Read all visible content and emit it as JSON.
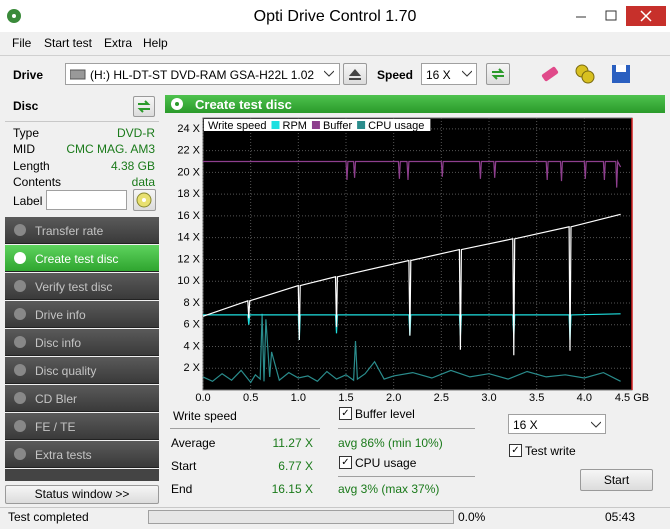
{
  "window": {
    "title": "Opti Drive Control 1.70"
  },
  "menu": [
    "File",
    "Start test",
    "Extra",
    "Help"
  ],
  "toolbar": {
    "drive_label": "Drive",
    "drive": "(H:)  HL-DT-ST DVD-RAM GSA-H22L 1.02",
    "speed_label": "Speed",
    "speed": "16 X"
  },
  "disc": {
    "title": "Disc",
    "fields": [
      [
        "Type",
        "DVD-R"
      ],
      [
        "MID",
        "CMC MAG. AM3"
      ],
      [
        "Length",
        "4.38 GB"
      ],
      [
        "Contents",
        "data"
      ]
    ],
    "label": "Label"
  },
  "nav": [
    "Transfer rate",
    "Create test disc",
    "Verify test disc",
    "Drive info",
    "Disc info",
    "Disc quality",
    "CD Bler",
    "FE / TE",
    "Extra tests"
  ],
  "status_window": "Status window >>",
  "status_bar": {
    "message": "Test completed",
    "progress": "0.0%",
    "time": "05:43"
  },
  "panel": {
    "title": "Create test disc"
  },
  "chart_data": {
    "type": "line",
    "grid": true,
    "xlim": [
      0,
      4.5
    ],
    "ylim": [
      0,
      25
    ],
    "xticks": [
      {
        "value": 0,
        "label": "0.0"
      },
      0.5,
      {
        "value": 1,
        "label": "1.0"
      },
      1.5,
      {
        "value": 2,
        "label": "2.0"
      },
      2.5,
      {
        "value": 3,
        "label": "3.0"
      },
      3.5,
      {
        "value": 4,
        "label": "4.0"
      },
      {
        "value": 4.5,
        "label": "4.5 GB"
      }
    ],
    "yticks": [
      {
        "value": 2,
        "label": "2 X"
      },
      {
        "value": 4,
        "label": "4 X"
      },
      {
        "value": 6,
        "label": "6 X"
      },
      {
        "value": 8,
        "label": "8 X"
      },
      {
        "value": 10,
        "label": "10 X"
      },
      {
        "value": 12,
        "label": "12 X"
      },
      {
        "value": 14,
        "label": "14 X"
      },
      {
        "value": 16,
        "label": "16 X"
      },
      {
        "value": 18,
        "label": "18 X"
      },
      {
        "value": 20,
        "label": "20 X"
      },
      {
        "value": 22,
        "label": "22 X"
      },
      {
        "value": 24,
        "label": "24 X"
      }
    ],
    "series": [
      {
        "name": "Write speed",
        "color": "#ffffff",
        "x": [
          0,
          0.47,
          0.48,
          0.49,
          1.0,
          1.01,
          1.02,
          1.39,
          1.4,
          1.41,
          2.16,
          2.17,
          2.18,
          2.69,
          2.7,
          2.71,
          3.25,
          3.26,
          3.27,
          3.84,
          3.85,
          3.86,
          4.38
        ],
        "values": [
          6.77,
          8.2,
          6.6,
          8.2,
          9.6,
          4.6,
          9.6,
          10.4,
          5.8,
          10.4,
          11.9,
          5.0,
          11.9,
          12.9,
          3.7,
          12.9,
          13.9,
          3.2,
          13.9,
          15.0,
          3.6,
          15.0,
          16.15
        ]
      },
      {
        "name": "RPM",
        "color": "#1ee0e0",
        "x": [
          0,
          0.47,
          0.48,
          0.49,
          1.0,
          1.01,
          1.02,
          1.39,
          1.4,
          1.41,
          2.16,
          2.17,
          2.18,
          2.69,
          2.7,
          2.71,
          3.25,
          3.26,
          3.27,
          3.84,
          3.85,
          3.86,
          4.38
        ],
        "values": [
          6.9,
          6.9,
          6.0,
          6.9,
          6.9,
          4.6,
          6.9,
          6.9,
          5.2,
          6.9,
          6.9,
          5.0,
          6.9,
          6.9,
          5.0,
          6.9,
          6.9,
          4.8,
          6.9,
          6.9,
          4.6,
          6.9,
          7.0
        ]
      },
      {
        "name": "Buffer",
        "color": "#8e3f8e",
        "x": [
          0,
          1.5,
          1.51,
          1.52,
          1.58,
          1.59,
          1.6,
          2.05,
          2.06,
          2.07,
          2.14,
          2.15,
          2.16,
          2.5,
          2.51,
          2.52,
          2.9,
          2.91,
          2.92,
          3.05,
          3.06,
          3.07,
          3.6,
          3.61,
          3.62,
          3.75,
          3.76,
          3.77,
          4.0,
          4.01,
          4.02,
          4.2,
          4.21,
          4.22,
          4.33,
          4.34,
          4.35,
          4.38
        ],
        "values": [
          21,
          21,
          19.3,
          21,
          21,
          19.5,
          21,
          21,
          19.4,
          21,
          21,
          19.3,
          21,
          21,
          19.6,
          21,
          21,
          19.4,
          21,
          21,
          19.5,
          21,
          21,
          19.3,
          21,
          21,
          19.2,
          21,
          21,
          19.4,
          21,
          21,
          19.3,
          21,
          21,
          18.6,
          21,
          20.5
        ]
      },
      {
        "name": "CPU usage",
        "color": "#2a8c8c",
        "x": [
          0,
          0.1,
          0.2,
          0.3,
          0.4,
          0.5,
          0.55,
          0.6,
          0.62,
          0.64,
          0.66,
          0.7,
          0.72,
          0.8,
          0.9,
          1.0,
          1.1,
          1.2,
          1.3,
          1.4,
          1.5,
          1.58,
          1.6,
          1.62,
          1.7,
          1.8,
          1.9,
          2.0,
          2.2,
          2.4,
          2.6,
          2.8,
          3.0,
          3.2,
          3.4,
          3.6,
          3.8,
          4.0,
          4.2,
          4.38
        ],
        "values": [
          1.2,
          0.8,
          1.5,
          0.9,
          1.8,
          0.7,
          1.4,
          1.0,
          7.0,
          0.8,
          6.5,
          1.2,
          3.5,
          0.9,
          1.6,
          1.1,
          1.3,
          0.8,
          1.7,
          1.0,
          1.4,
          0.9,
          4.5,
          1.0,
          1.5,
          2.6,
          1.0,
          1.3,
          1.6,
          1.1,
          1.8,
          1.2,
          1.5,
          1.0,
          1.7,
          1.2,
          1.4,
          1.1,
          1.6,
          0.8
        ]
      }
    ]
  },
  "results": {
    "write_speed": "Write speed",
    "rows": [
      [
        "Average",
        "11.27 X"
      ],
      [
        "Start",
        "6.77 X"
      ],
      [
        "End",
        "16.15 X"
      ]
    ],
    "buffer_level": "Buffer level",
    "buffer_stats": "avg 86% (min 10%)",
    "cpu_usage": "CPU usage",
    "cpu_stats": "avg 3% (max 37%)",
    "speed": "16 X",
    "test_write": "Test write",
    "start": "Start"
  }
}
